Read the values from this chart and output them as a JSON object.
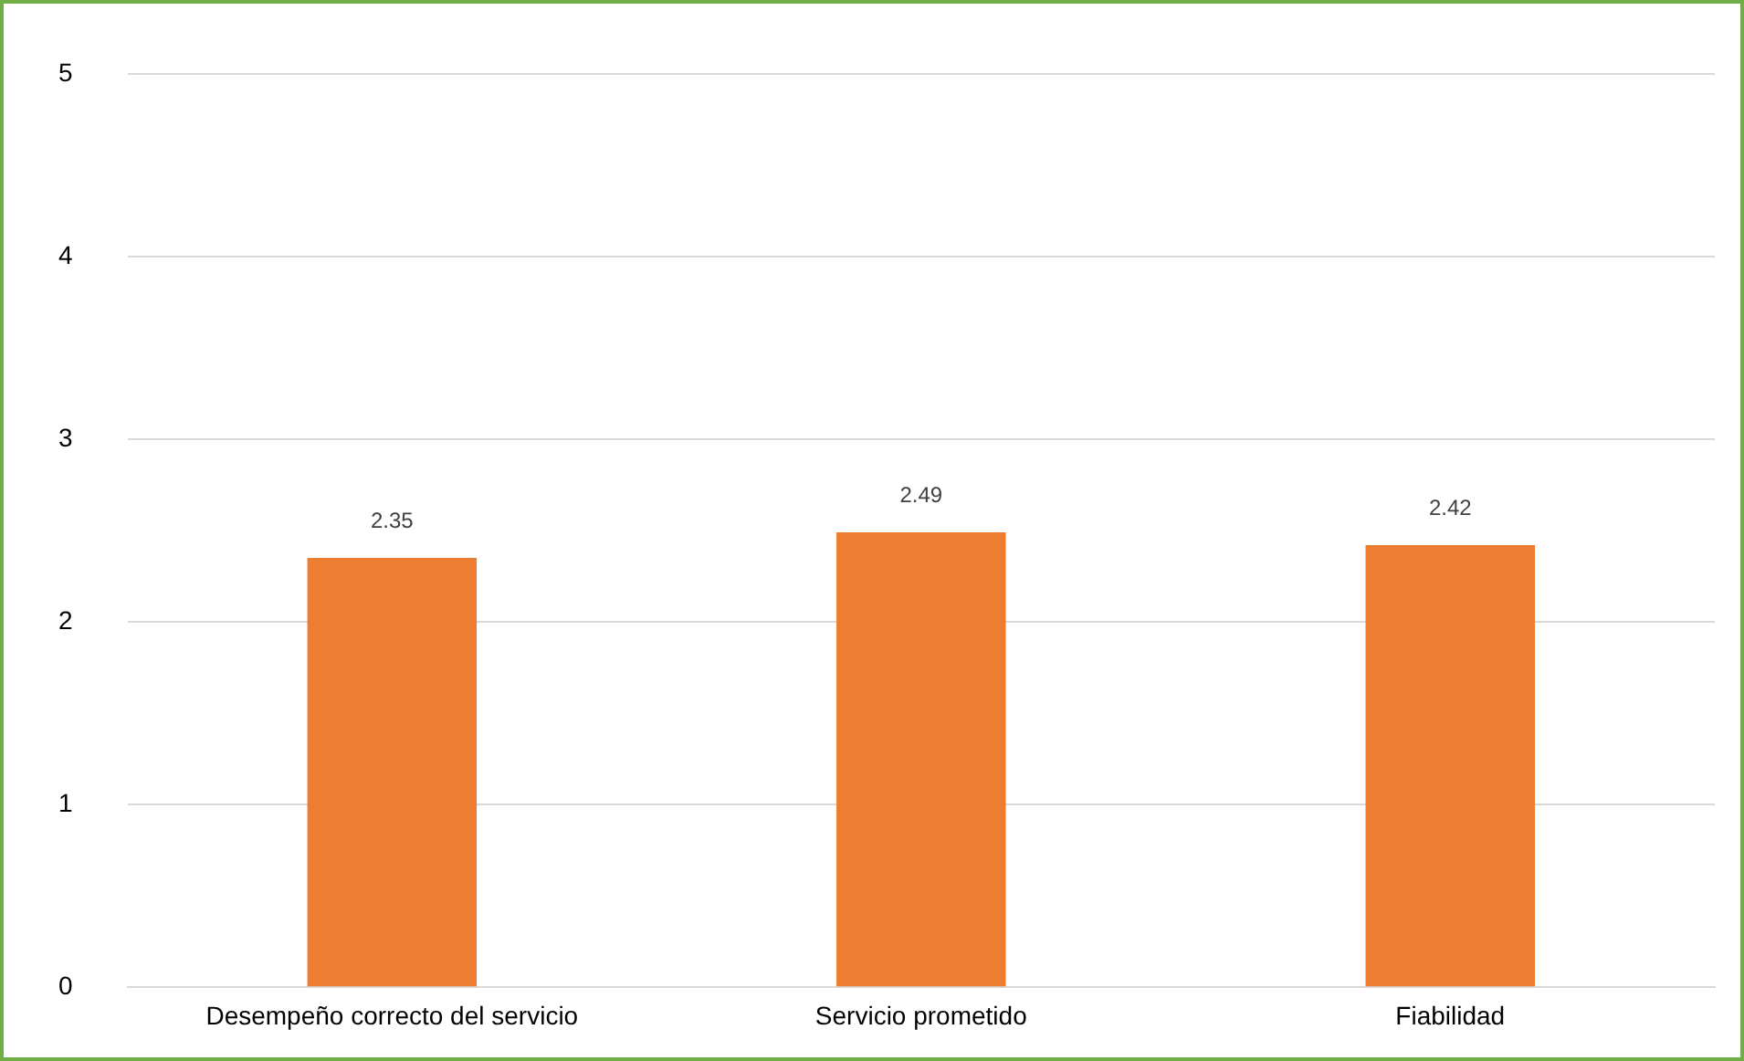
{
  "chart_data": {
    "type": "bar",
    "categories": [
      "Desempeño correcto del servicio",
      "Servicio prometido",
      "Fiabilidad"
    ],
    "values": [
      2.35,
      2.49,
      2.42
    ],
    "color": "#ed7d31",
    "ylim": [
      0,
      5
    ],
    "yticks": [
      0,
      1,
      2,
      3,
      4,
      5
    ],
    "grid": "y",
    "data_labels": true
  }
}
